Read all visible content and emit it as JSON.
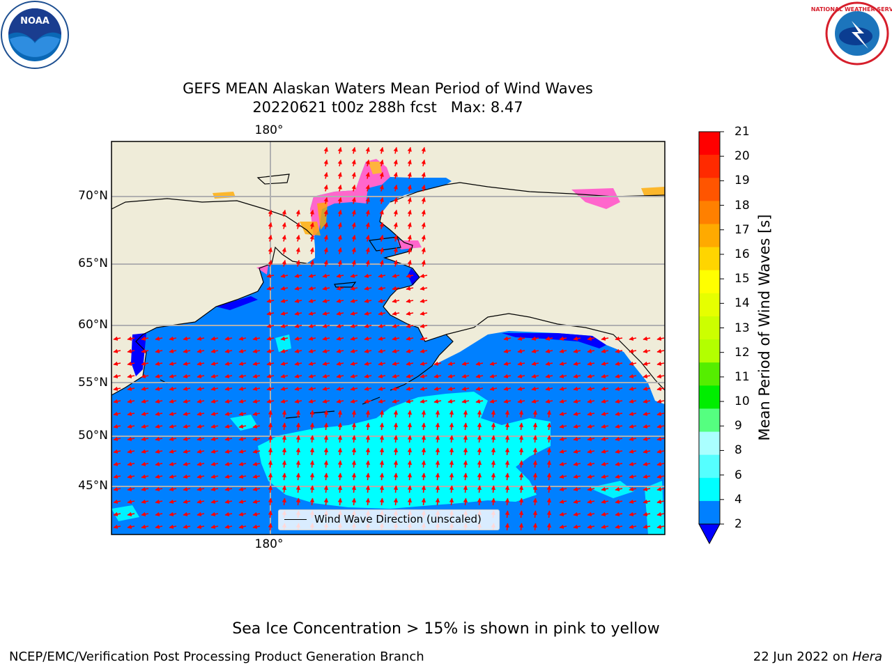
{
  "title": {
    "line1": "GEFS MEAN Alaskan Waters Mean Period of Wind Waves",
    "line2": "20220621 t00z 288h fcst   Max: 8.47"
  },
  "logos": {
    "left": {
      "icon": "noaa-logo-icon",
      "wordmark": "NOAA"
    },
    "right": {
      "icon": "nws-logo-icon",
      "wordmark": "NATIONAL WEATHER SERVICE"
    }
  },
  "map": {
    "lon_labels": {
      "top": "180°",
      "bottom": "180°"
    },
    "lat_labels": [
      "70°N",
      "65°N",
      "60°N",
      "55°N",
      "50°N",
      "45°N"
    ],
    "legend": "Wind Wave Direction (unscaled)",
    "colors": {
      "land": "#efecd9",
      "ocean_2_4": "#0080ff",
      "ocean_4_6": "#00ffff",
      "ocean_below_2": "#0000ff",
      "sea_ice": "#ff66cc",
      "arrow": "#ff0000",
      "gridline": "#b0b0b0"
    }
  },
  "colorbar": {
    "label": "Mean Period of Wind Waves [s]",
    "ticks": [
      "21",
      "20",
      "19",
      "18",
      "17",
      "16",
      "15",
      "14",
      "13",
      "12",
      "11",
      "10",
      "9",
      "8",
      "6",
      "4",
      "2"
    ],
    "colors": [
      "#ff0000",
      "#ff2a00",
      "#ff5500",
      "#ff8000",
      "#ffaa00",
      "#ffd500",
      "#ffff00",
      "#e6ff00",
      "#ccff00",
      "#b3ff00",
      "#55ee00",
      "#00ee00",
      "#55ff80",
      "#aaffff",
      "#55ffff",
      "#00ffff",
      "#0080ff"
    ],
    "under_color": "#0000ff"
  },
  "notes": {
    "sea_ice": "Sea Ice Concentration > 15% is shown in pink to yellow"
  },
  "footer": {
    "left": "NCEP/EMC/Verification Post Processing Product Generation Branch",
    "right_date": "22 Jun 2022 on ",
    "right_host": "Hera"
  }
}
